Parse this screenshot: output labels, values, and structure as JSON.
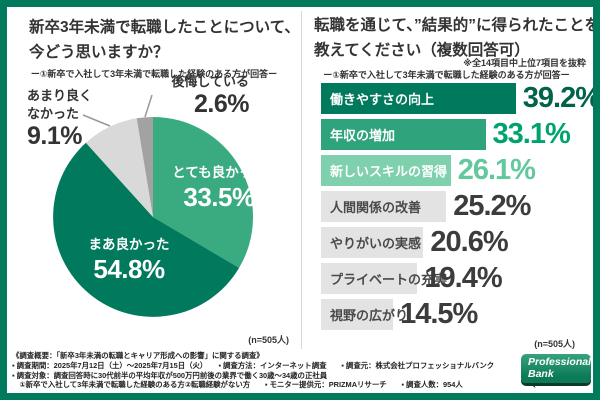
{
  "left_panel": {
    "title_line1": "新卒3年未満で転職したことについて、",
    "title_line2": "今どう思いますか？",
    "respondent_note": "ー①新卒で入社して3年未満で転職した経験のある方が回答ー",
    "sample_size_label": "(n=505人)"
  },
  "right_panel": {
    "title_line1": "転職を通じて、”結果的”に得られたことを",
    "title_line2": "教えてください（複数回答可）",
    "excerpt_note": "※全14項目中上位7項目を抜粋",
    "respondent_note": "ー①新卒で入社して3年未満で転職した経験のある方が回答ー",
    "sample_size_label": "(n=505人)"
  },
  "chart_data": [
    {
      "type": "pie",
      "title": "新卒3年未満で転職したことについて、今どう思いますか？",
      "labels": [
        "とても良かった",
        "まあ良かった",
        "あまり良くなかった",
        "後悔している"
      ],
      "values": [
        33.5,
        54.8,
        9.1,
        2.6
      ],
      "colors": [
        "#3aab81",
        "#00795c",
        "#d9d9d9",
        "#a2a2a2"
      ],
      "start_angle_deg": 0,
      "direction": "clockwise",
      "unit": "%",
      "sample_size": 505
    },
    {
      "type": "bar",
      "orientation": "horizontal",
      "title": "転職を通じて、”結果的”に得られたことを教えてください（複数回答可）",
      "categories": [
        "働きやすさの向上",
        "年収の増加",
        "新しいスキルの習得",
        "人間関係の改善",
        "やりがいの実感",
        "プライベートの充実",
        "視野の広がり"
      ],
      "values": [
        39.2,
        33.1,
        26.1,
        25.2,
        20.6,
        19.4,
        14.5
      ],
      "bar_colors": [
        "#00795c",
        "#2ea37c",
        "#7fd0ac",
        "#e3e3e3",
        "#e3e3e3",
        "#e3e3e3",
        "#e3e3e3"
      ],
      "label_colors": [
        "#ffffff",
        "#ffffff",
        "#ffffff",
        "#4a4a4a",
        "#4a4a4a",
        "#4a4a4a",
        "#4a4a4a"
      ],
      "value_colors": [
        "#00634a",
        "#00a36c",
        "#62c89e",
        "#3c3c3c",
        "#3c3c3c",
        "#3c3c3c",
        "#3c3c3c"
      ],
      "xlim": [
        0,
        40
      ],
      "unit": "%",
      "sample_size": 505
    }
  ],
  "footer": {
    "lines": [
      "《調査概要：「新卒3年未満の転職とキャリア形成への影響」に関する調査》",
      "▪ 調査期間：2025年7月12日（土）～2025年7月15日（火）　　▪ 調査方法：インターネット調査　　▪ 調査元：株式会社プロフェッショナルバンク",
      "▪ 調査対象：調査回答時に30代前半の平均年収が500万円前後の業界で働く30歳～34歳の正社員",
      "　①新卒で入社して3年未満で転職した経験のある方②転職経験がない方　　▪ モニター提供元：PRIZMAリサーチ　　▪ 調査人数：954人"
    ]
  },
  "logo": {
    "line1": "Professional",
    "line2": "Bank"
  },
  "brand_colors": {
    "frame_green": "#00795c",
    "logo_shadow": "#0a3c2c"
  }
}
